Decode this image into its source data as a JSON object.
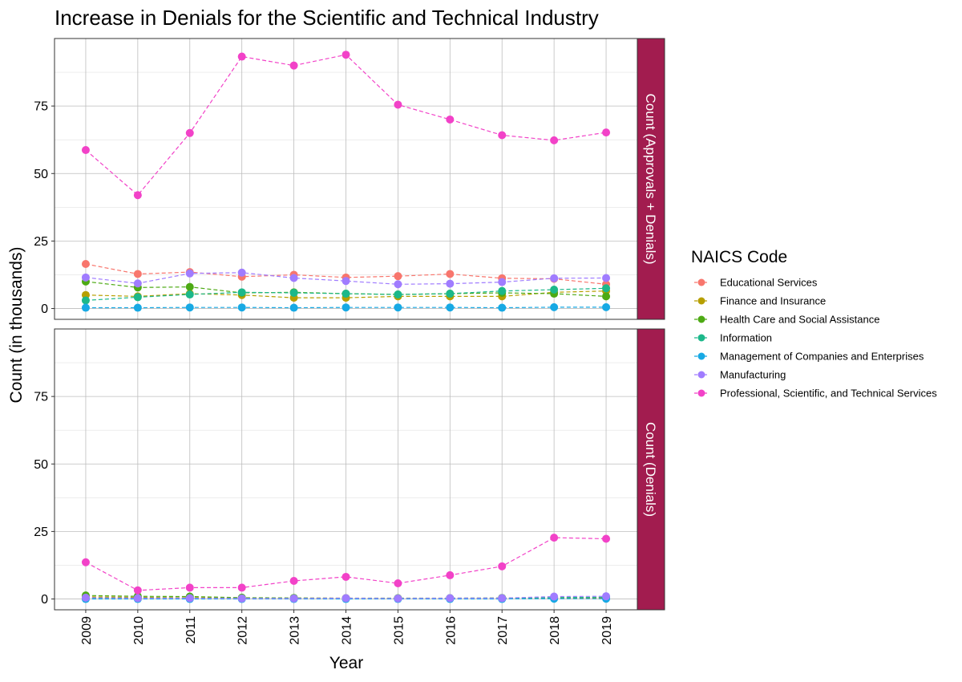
{
  "chart_data": {
    "type": "line",
    "title": "Increase in Denials for the Scientific and Technical Industry",
    "xlabel": "Year",
    "ylabel": "Count (in thousands)",
    "x": [
      "2009",
      "2010",
      "2011",
      "2012",
      "2013",
      "2014",
      "2015",
      "2016",
      "2017",
      "2018",
      "2019"
    ],
    "ylim": [
      -4,
      100
    ],
    "yticks": [
      "0",
      "25",
      "50",
      "75"
    ],
    "grid": true,
    "line_style": "dashed",
    "strip_color": "#A21C4F",
    "legend": {
      "title": "NAICS Code",
      "position": "right"
    },
    "series_meta": [
      {
        "name": "Educational Services",
        "color": "#F8766D"
      },
      {
        "name": "Finance and Insurance",
        "color": "#B79F00"
      },
      {
        "name": "Health Care and Social Assistance",
        "color": "#4DAA14"
      },
      {
        "name": "Information",
        "color": "#1CB88A"
      },
      {
        "name": "Management of Companies and Enterprises",
        "color": "#17A9E4"
      },
      {
        "name": "Manufacturing",
        "color": "#A07CFF"
      },
      {
        "name": "Professional, Scientific, and Technical Services",
        "color": "#F242C8"
      }
    ],
    "panels": [
      {
        "strip": "Count (Approvals + Denials)",
        "series": [
          {
            "name": "Educational Services",
            "values": [
              16.5,
              12.8,
              13.5,
              11.8,
              12.5,
              11.5,
              12.0,
              12.8,
              11.2,
              11.0,
              9.0
            ]
          },
          {
            "name": "Finance and Insurance",
            "values": [
              5.0,
              4.5,
              5.5,
              5.0,
              4.0,
              4.0,
              4.5,
              4.5,
              4.5,
              6.0,
              6.5
            ]
          },
          {
            "name": "Health Care and Social Assistance",
            "values": [
              10.0,
              7.8,
              8.0,
              5.8,
              6.0,
              5.5,
              5.2,
              5.5,
              5.8,
              5.5,
              4.5
            ]
          },
          {
            "name": "Information",
            "values": [
              3.0,
              4.2,
              5.2,
              6.0,
              5.8,
              5.5,
              5.2,
              5.5,
              6.5,
              7.0,
              7.5
            ]
          },
          {
            "name": "Management of Companies and Enterprises",
            "values": [
              0.3,
              0.3,
              0.4,
              0.4,
              0.3,
              0.4,
              0.4,
              0.4,
              0.3,
              0.5,
              0.5
            ]
          },
          {
            "name": "Manufacturing",
            "values": [
              11.5,
              9.3,
              13.0,
              13.3,
              11.3,
              10.2,
              9.0,
              9.2,
              9.8,
              11.2,
              11.3
            ]
          },
          {
            "name": "Professional, Scientific, and Technical Services",
            "values": [
              58.7,
              42.0,
              65.0,
              93.3,
              90.0,
              94.0,
              75.5,
              70.0,
              64.2,
              62.3,
              65.2
            ]
          }
        ]
      },
      {
        "strip": "Count (Denials)",
        "series": [
          {
            "name": "Educational Services",
            "values": [
              0.5,
              0.4,
              0.4,
              0.3,
              0.3,
              0.3,
              0.2,
              0.3,
              0.2,
              0.3,
              0.3
            ]
          },
          {
            "name": "Finance and Insurance",
            "values": [
              0.8,
              0.6,
              0.5,
              0.3,
              0.2,
              0.2,
              0.2,
              0.2,
              0.3,
              0.5,
              0.5
            ]
          },
          {
            "name": "Health Care and Social Assistance",
            "values": [
              1.3,
              1.0,
              0.9,
              0.5,
              0.4,
              0.3,
              0.3,
              0.3,
              0.4,
              0.5,
              0.6
            ]
          },
          {
            "name": "Information",
            "values": [
              0.3,
              0.3,
              0.3,
              0.2,
              0.2,
              0.2,
              0.2,
              0.3,
              0.3,
              0.5,
              0.7
            ]
          },
          {
            "name": "Management of Companies and Enterprises",
            "values": [
              0.0,
              0.0,
              0.0,
              0.0,
              0.0,
              0.0,
              0.0,
              0.0,
              0.0,
              0.1,
              0.1
            ]
          },
          {
            "name": "Manufacturing",
            "values": [
              0.5,
              0.3,
              0.3,
              0.2,
              0.2,
              0.3,
              0.2,
              0.3,
              0.3,
              0.9,
              1.0
            ]
          },
          {
            "name": "Professional, Scientific, and Technical Services",
            "values": [
              13.6,
              3.2,
              4.2,
              4.2,
              6.7,
              8.2,
              5.8,
              8.8,
              12.1,
              22.7,
              22.3
            ]
          }
        ]
      }
    ]
  }
}
